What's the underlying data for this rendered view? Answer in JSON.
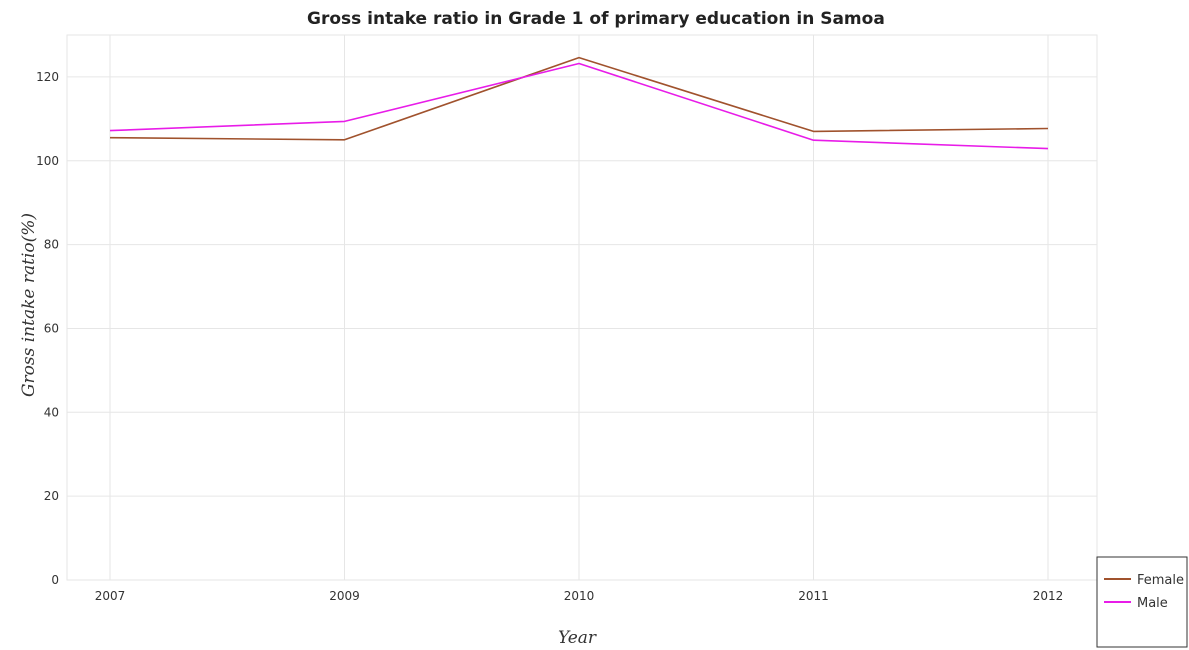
{
  "chart_data": {
    "type": "line",
    "title": "Gross intake ratio in Grade 1 of primary education in Samoa",
    "xlabel": "Year",
    "ylabel": "Gross intake ratio(%)",
    "categories": [
      "2007",
      "2009",
      "2010",
      "2011",
      "2012"
    ],
    "ylim": [
      0,
      130
    ],
    "yticks": [
      0,
      20,
      40,
      60,
      80,
      100,
      120
    ],
    "grid": true,
    "legend_position": "bottom-right",
    "series": [
      {
        "name": "Female",
        "color": "#a0522d",
        "values": [
          105.5,
          105.0,
          124.6,
          107.0,
          107.7
        ]
      },
      {
        "name": "Male",
        "color": "#e81ce8",
        "values": [
          107.2,
          109.4,
          123.2,
          104.9,
          102.9
        ]
      }
    ]
  }
}
